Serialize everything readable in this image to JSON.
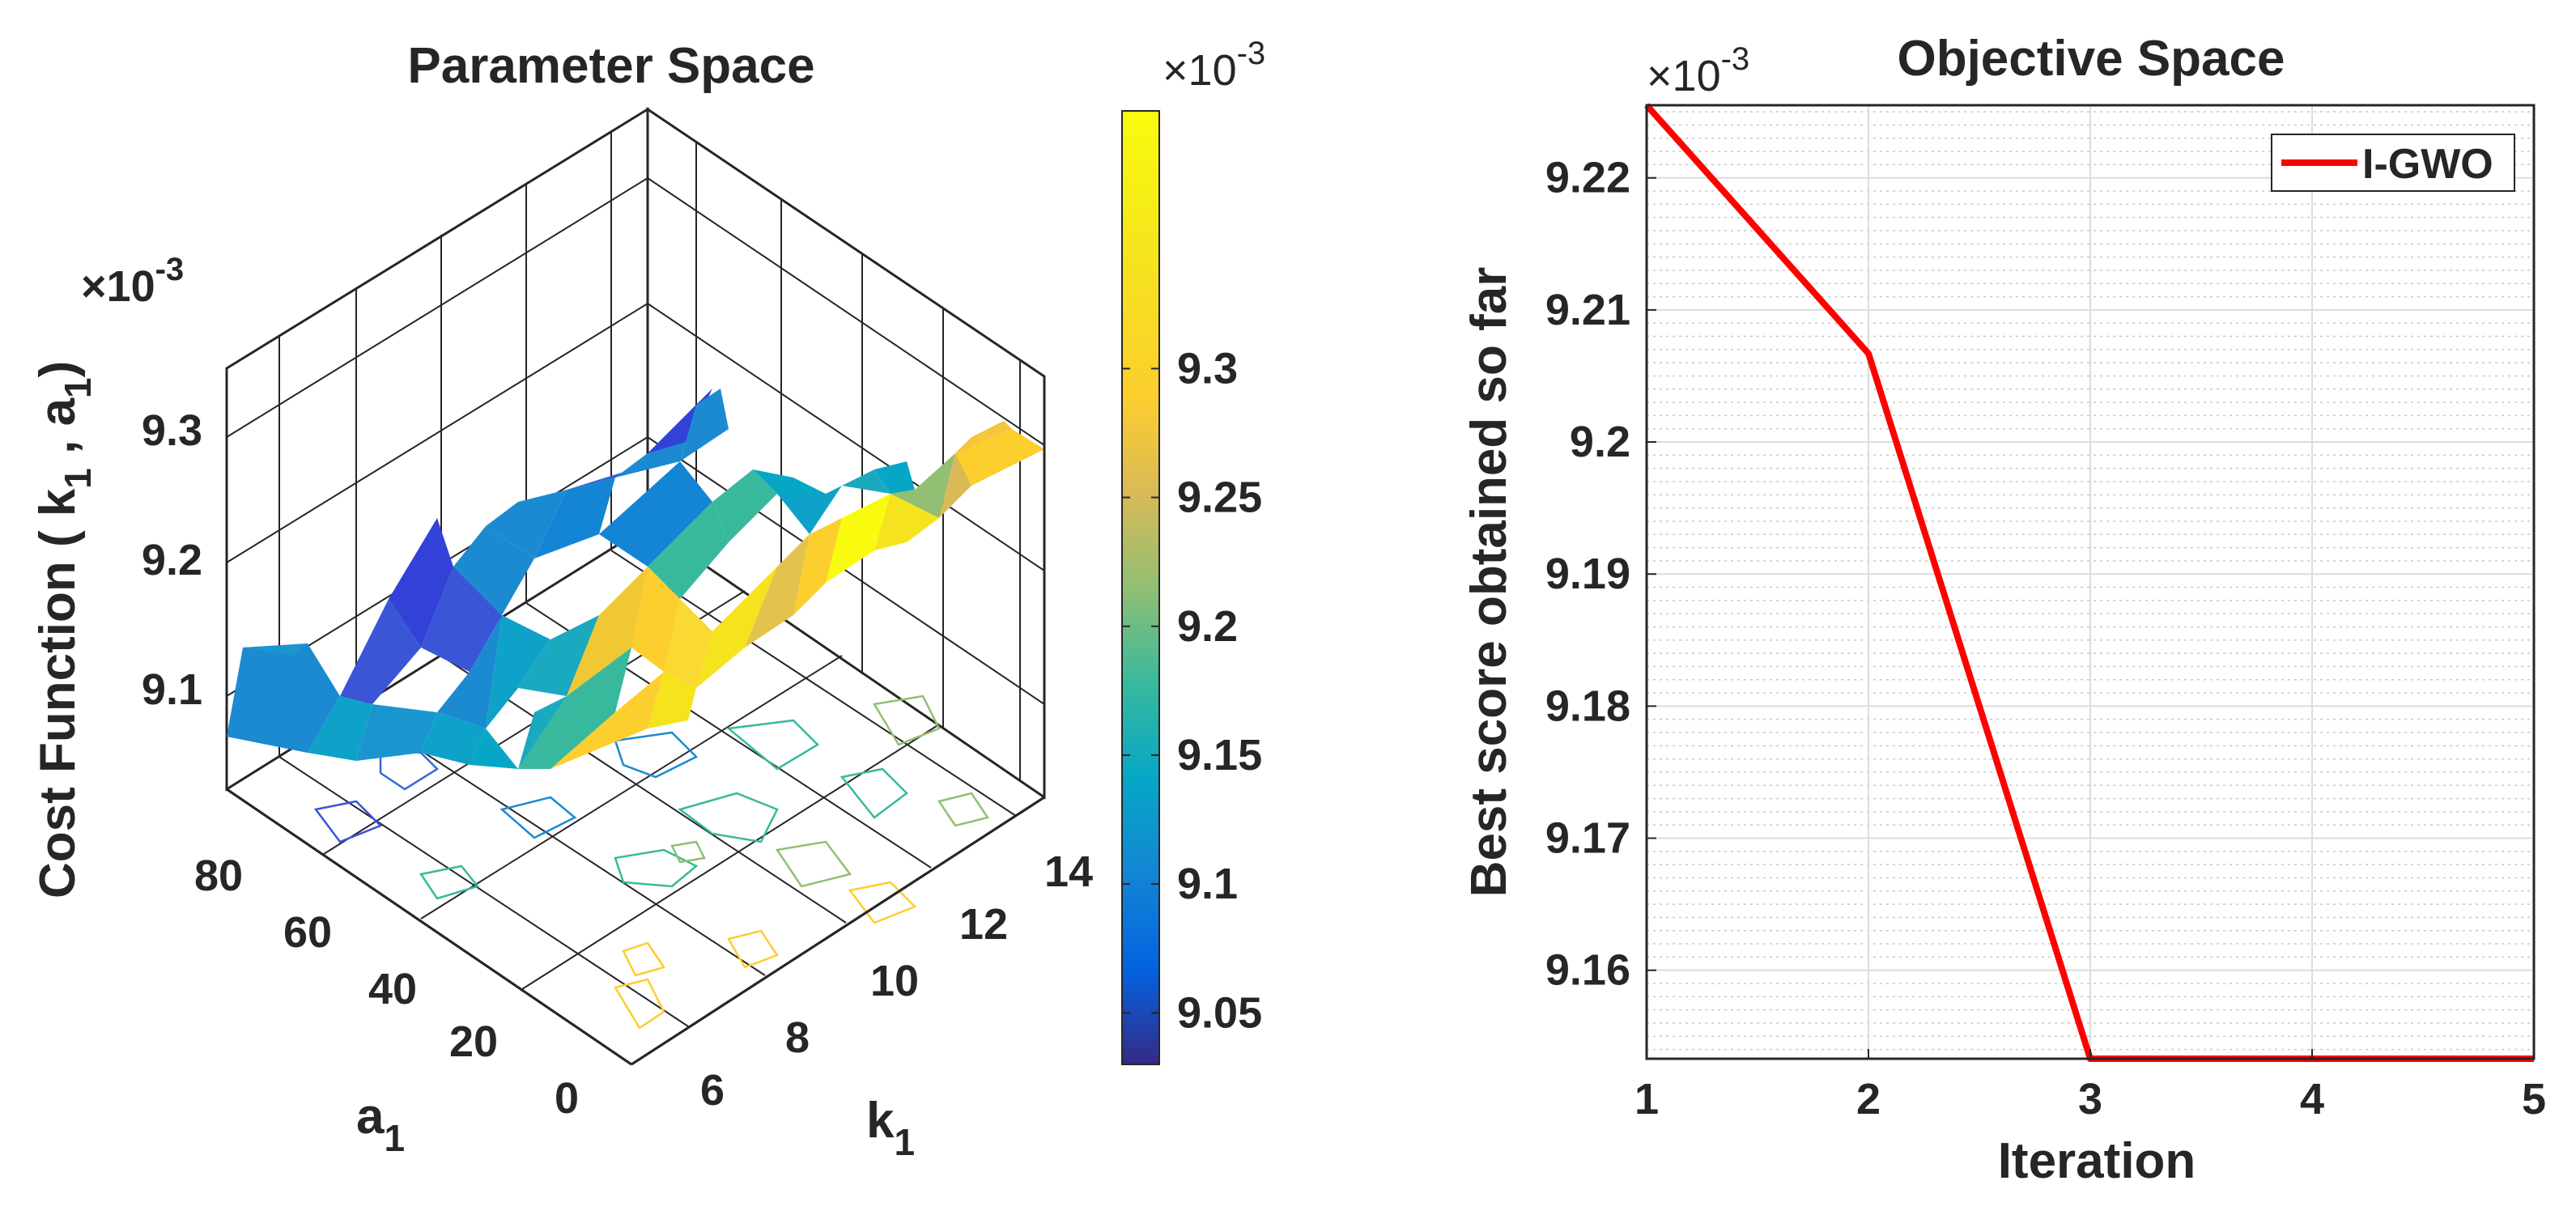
{
  "chart_data": [
    {
      "type": "surface",
      "title": "Parameter Space",
      "xlabel": "k",
      "xlabel_sub": "1",
      "ylabel": "a",
      "ylabel_sub": "1",
      "zlabel": "Cost Function ( k",
      "zlabel_sub": "1",
      "zlabel_mid": " , a",
      "zlabel_sub2": "1",
      "zlabel_end": ")",
      "z_exponent": "×10-3",
      "z_exp_base": "×10",
      "z_exp_power": "-3",
      "k_ticks": [
        "6",
        "8",
        "10",
        "12",
        "14"
      ],
      "a_ticks": [
        "0",
        "20",
        "40",
        "60",
        "80"
      ],
      "z_ticks": [
        "9.1",
        "9.2",
        "9.3"
      ],
      "colorbar": {
        "range": [
          9.03,
          9.4
        ],
        "ticks": [
          "9.05",
          "9.1",
          "9.15",
          "9.2",
          "9.25",
          "9.3"
        ],
        "exponent_base": "×10",
        "exponent_power": "-3",
        "colormap": "parula"
      }
    },
    {
      "type": "line",
      "title": "Objective Space",
      "xlabel": "Iteration",
      "ylabel": "Best score obtained so far",
      "y_exponent_base": "×10",
      "y_exponent_power": "-3",
      "x": [
        1,
        2,
        3,
        4,
        5
      ],
      "x_ticks": [
        "1",
        "2",
        "3",
        "4",
        "5"
      ],
      "y_ticks": [
        "9.16",
        "9.17",
        "9.18",
        "9.19",
        "9.2",
        "9.21",
        "9.22"
      ],
      "xlim": [
        1,
        5
      ],
      "ylim": [
        9.1533,
        9.2255
      ],
      "grid": true,
      "legend_position": "top-right",
      "series": [
        {
          "name": "I-GWO",
          "color": "#ff0000",
          "values": [
            9.2255,
            9.2067,
            9.1533,
            9.1533,
            9.1533
          ]
        }
      ]
    }
  ]
}
